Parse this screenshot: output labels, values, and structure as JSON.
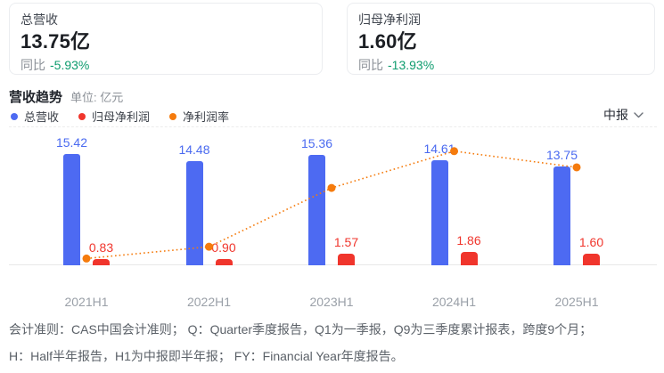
{
  "summary_cards": [
    {
      "title": "总营收",
      "value": "13.75亿",
      "yoy_label": "同比",
      "yoy_value": "-5.93%"
    },
    {
      "title": "归母净利润",
      "value": "1.60亿",
      "yoy_label": "同比",
      "yoy_value": "-13.93%"
    }
  ],
  "section": {
    "title": "营收趋势",
    "unit": "单位: 亿元",
    "period_selector": "中报"
  },
  "legend": [
    {
      "label": "总营收",
      "color": "#4d6af2"
    },
    {
      "label": "归母净利润",
      "color": "#f0352c"
    },
    {
      "label": "净利润率",
      "color": "#f57b0d"
    }
  ],
  "chart_data": {
    "type": "bar",
    "categories": [
      "2021H1",
      "2022H1",
      "2023H1",
      "2024H1",
      "2025H1"
    ],
    "series": [
      {
        "name": "总营收",
        "type": "bar",
        "color": "#4d6af2",
        "label_color": "#4a6af0",
        "values": [
          15.42,
          14.48,
          15.36,
          14.61,
          13.75
        ]
      },
      {
        "name": "归母净利润",
        "type": "bar",
        "color": "#f0352c",
        "label_color": "#f0352c",
        "values": [
          0.83,
          0.9,
          1.57,
          1.86,
          1.6
        ]
      },
      {
        "name": "净利润率",
        "type": "line",
        "line_style": "dotted",
        "color": "#f57b0d",
        "values_pct": [
          5.4,
          6.2,
          10.2,
          12.7,
          11.6
        ]
      }
    ],
    "title": "营收趋势",
    "xlabel": "",
    "ylabel": "亿元",
    "ylim": [
      0,
      16
    ],
    "value_labels_shown": true,
    "grid": "baseline-only",
    "legend_position": "top-left"
  },
  "footnotes": [
    "会计准则：CAS中国会计准则； Q：Quarter季度报告，Q1为一季报，Q9为三季度累计报表，跨度9个月；",
    "H：Half半年报告，H1为中报即半年报； FY：Financial Year年度报告。"
  ]
}
